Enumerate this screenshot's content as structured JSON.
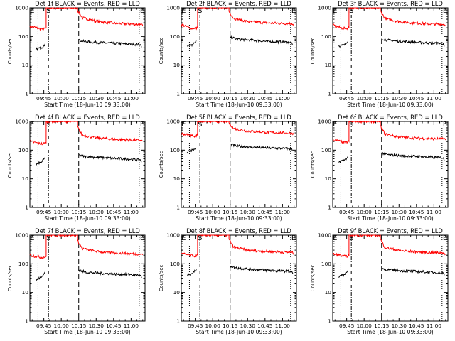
{
  "colors": {
    "events": "#000000",
    "lld": "#ff0000",
    "axes": "#000000",
    "background": "#ffffff"
  },
  "chart_data": [
    {
      "type": "line",
      "title": "Det 1f BLACK = Events, RED = LLD",
      "xlabel": "Start Time (18-Jun-10 09:33:00)",
      "ylabel": "Counts/sec",
      "x_ticks": [
        "09:45",
        "10:00",
        "10:15",
        "10:30",
        "10:45",
        "11:00"
      ],
      "y_ticks": [
        "1",
        "10",
        "100",
        "1000"
      ],
      "y_scale": "log",
      "ylim": [
        1,
        1000
      ],
      "xlim": [
        "09:33",
        "11:12"
      ],
      "markers": [
        "E",
        "S",
        "E"
      ],
      "series": [
        {
          "color": "#ff0000",
          "x": [
            "09:33",
            "09:40",
            "09:44",
            "09:47",
            "09:47",
            "10:14",
            "10:14",
            "10:18",
            "10:30",
            "10:45",
            "11:00",
            "11:08",
            "11:10"
          ],
          "y": [
            230,
            195,
            175,
            195,
            1000,
            1000,
            800,
            450,
            340,
            290,
            270,
            260,
            240
          ]
        },
        {
          "color": "#000000",
          "x": [
            "09:38",
            "09:40",
            "09:43",
            "09:45",
            "09:46",
            "10:15",
            "10:15",
            "10:20",
            "10:30",
            "10:45",
            "11:00",
            "11:08",
            "11:09"
          ],
          "y": [
            34,
            38,
            40,
            50,
            55,
            null,
            75,
            66,
            62,
            57,
            54,
            52,
            42
          ]
        }
      ]
    },
    {
      "type": "line",
      "title": "Det 2f BLACK = Events, RED = LLD",
      "xlabel": "Start Time (18-Jun-10 09:33:00)",
      "ylabel": "Counts/sec",
      "x_ticks": [
        "09:45",
        "10:00",
        "10:15",
        "10:30",
        "10:45",
        "11:00"
      ],
      "y_ticks": [
        "1",
        "10",
        "100",
        "1000"
      ],
      "y_scale": "log",
      "ylim": [
        1,
        1000
      ],
      "xlim": [
        "09:33",
        "11:12"
      ],
      "markers": [
        "E",
        "S",
        "E"
      ],
      "series": [
        {
          "color": "#ff0000",
          "x": [
            "09:33",
            "09:40",
            "09:44",
            "09:47",
            "09:47",
            "10:14",
            "10:14",
            "10:18",
            "10:30",
            "10:45",
            "11:00",
            "11:08",
            "11:10"
          ],
          "y": [
            260,
            200,
            185,
            210,
            1000,
            1000,
            750,
            430,
            330,
            300,
            285,
            280,
            255
          ]
        },
        {
          "color": "#000000",
          "x": [
            "09:38",
            "09:40",
            "09:43",
            "09:45",
            "09:46",
            "10:15",
            "10:15",
            "10:20",
            "10:30",
            "10:45",
            "11:00",
            "11:08",
            "11:09"
          ],
          "y": [
            45,
            48,
            52,
            60,
            68,
            null,
            95,
            82,
            75,
            68,
            64,
            60,
            50
          ]
        }
      ]
    },
    {
      "type": "line",
      "title": "Det 3f BLACK = Events, RED = LLD",
      "xlabel": "Start Time (18-Jun-10 09:33:00)",
      "ylabel": "Counts/sec",
      "x_ticks": [
        "09:45",
        "10:00",
        "10:15",
        "10:30",
        "10:45",
        "11:00"
      ],
      "y_ticks": [
        "1",
        "10",
        "100",
        "1000"
      ],
      "y_scale": "log",
      "ylim": [
        1,
        1000
      ],
      "xlim": [
        "09:33",
        "11:12"
      ],
      "markers": [
        "E",
        "S",
        "E"
      ],
      "series": [
        {
          "color": "#ff0000",
          "x": [
            "09:33",
            "09:40",
            "09:44",
            "09:47",
            "09:47",
            "10:14",
            "10:14",
            "10:18",
            "10:30",
            "10:45",
            "11:00",
            "11:08",
            "11:10"
          ],
          "y": [
            250,
            200,
            185,
            205,
            1000,
            1000,
            780,
            420,
            330,
            290,
            270,
            265,
            245
          ]
        },
        {
          "color": "#000000",
          "x": [
            "09:38",
            "09:40",
            "09:43",
            "09:45",
            "09:46",
            "10:15",
            "10:15",
            "10:20",
            "10:30",
            "10:45",
            "11:00",
            "11:08",
            "11:09"
          ],
          "y": [
            46,
            48,
            50,
            58,
            66,
            null,
            85,
            74,
            68,
            62,
            58,
            56,
            45
          ]
        }
      ]
    },
    {
      "type": "line",
      "title": "Det 4f BLACK = Events, RED = LLD",
      "xlabel": "Start Time (18-Jun-10 09:33:00)",
      "ylabel": "Counts/sec",
      "x_ticks": [
        "09:45",
        "10:00",
        "10:15",
        "10:30",
        "10:45",
        "11:00"
      ],
      "y_ticks": [
        "1",
        "10",
        "100",
        "1000"
      ],
      "y_scale": "log",
      "ylim": [
        1,
        1000
      ],
      "xlim": [
        "09:33",
        "11:12"
      ],
      "markers": [
        "E",
        "S",
        "E"
      ],
      "series": [
        {
          "color": "#ff0000",
          "x": [
            "09:33",
            "09:40",
            "09:44",
            "09:47",
            "09:47",
            "10:14",
            "10:14",
            "10:18",
            "10:30",
            "10:45",
            "11:00",
            "11:08",
            "11:10"
          ],
          "y": [
            200,
            175,
            165,
            180,
            1000,
            1000,
            650,
            330,
            270,
            240,
            225,
            220,
            205
          ]
        },
        {
          "color": "#000000",
          "x": [
            "09:38",
            "09:40",
            "09:43",
            "09:45",
            "09:46",
            "10:15",
            "10:15",
            "10:20",
            "10:30",
            "10:45",
            "11:00",
            "11:08",
            "11:09"
          ],
          "y": [
            30,
            34,
            38,
            48,
            55,
            null,
            68,
            60,
            56,
            52,
            48,
            46,
            38
          ]
        }
      ]
    },
    {
      "type": "line",
      "title": "Det 5f BLACK = Events, RED = LLD",
      "xlabel": "Start Time (18-Jun-10 09:33:00)",
      "ylabel": "Counts/sec",
      "x_ticks": [
        "09:45",
        "10:00",
        "10:15",
        "10:30",
        "10:45",
        "11:00"
      ],
      "y_ticks": [
        "1",
        "10",
        "100",
        "1000"
      ],
      "y_scale": "log",
      "ylim": [
        1,
        1000
      ],
      "xlim": [
        "09:33",
        "11:12"
      ],
      "markers": [
        "E",
        "S",
        "E"
      ],
      "series": [
        {
          "color": "#ff0000",
          "x": [
            "09:33",
            "09:40",
            "09:44",
            "09:47",
            "09:47",
            "10:14",
            "10:14",
            "10:18",
            "10:30",
            "10:45",
            "11:00",
            "11:08",
            "11:10"
          ],
          "y": [
            380,
            330,
            310,
            340,
            1000,
            1000,
            900,
            560,
            460,
            420,
            400,
            390,
            370
          ]
        },
        {
          "color": "#000000",
          "x": [
            "09:38",
            "09:40",
            "09:43",
            "09:45",
            "09:46",
            "10:15",
            "10:15",
            "10:20",
            "10:30",
            "10:45",
            "11:00",
            "11:08",
            "11:09"
          ],
          "y": [
            85,
            95,
            100,
            110,
            120,
            null,
            160,
            140,
            130,
            120,
            115,
            110,
            95
          ]
        }
      ]
    },
    {
      "type": "line",
      "title": "Det 6f BLACK = Events, RED = LLD",
      "xlabel": "Start Time (18-Jun-10 09:33:00)",
      "ylabel": "Counts/sec",
      "x_ticks": [
        "09:45",
        "10:00",
        "10:15",
        "10:30",
        "10:45",
        "11:00"
      ],
      "y_ticks": [
        "1",
        "10",
        "100",
        "1000"
      ],
      "y_scale": "log",
      "ylim": [
        1,
        1000
      ],
      "xlim": [
        "09:33",
        "11:12"
      ],
      "markers": [
        "E",
        "S",
        "E"
      ],
      "series": [
        {
          "color": "#ff0000",
          "x": [
            "09:33",
            "09:40",
            "09:44",
            "09:47",
            "09:47",
            "10:14",
            "10:14",
            "10:18",
            "10:30",
            "10:45",
            "11:00",
            "11:08",
            "11:10"
          ],
          "y": [
            230,
            200,
            185,
            200,
            1000,
            1000,
            700,
            360,
            290,
            260,
            250,
            245,
            225
          ]
        },
        {
          "color": "#000000",
          "x": [
            "09:38",
            "09:40",
            "09:43",
            "09:45",
            "09:46",
            "10:15",
            "10:15",
            "10:20",
            "10:30",
            "10:45",
            "11:00",
            "11:08",
            "11:09"
          ],
          "y": [
            38,
            42,
            45,
            52,
            60,
            null,
            80,
            70,
            64,
            60,
            56,
            54,
            44
          ]
        }
      ]
    },
    {
      "type": "line",
      "title": "Det 7f BLACK = Events, RED = LLD",
      "xlabel": "Start Time (18-Jun-10 09:33:00)",
      "ylabel": "Counts/sec",
      "x_ticks": [
        "09:45",
        "10:00",
        "10:15",
        "10:30",
        "10:45",
        "11:00"
      ],
      "y_ticks": [
        "1",
        "10",
        "100",
        "1000"
      ],
      "y_scale": "log",
      "ylim": [
        1,
        1000
      ],
      "xlim": [
        "09:33",
        "11:12"
      ],
      "markers": [
        "E",
        "S",
        "E"
      ],
      "series": [
        {
          "color": "#ff0000",
          "x": [
            "09:33",
            "09:40",
            "09:44",
            "09:47",
            "09:47",
            "10:14",
            "10:14",
            "10:18",
            "10:30",
            "10:45",
            "11:00",
            "11:08",
            "11:10"
          ],
          "y": [
            200,
            175,
            165,
            180,
            1000,
            1000,
            650,
            340,
            270,
            240,
            225,
            220,
            205
          ]
        },
        {
          "color": "#000000",
          "x": [
            "09:38",
            "09:40",
            "09:43",
            "09:45",
            "09:46",
            "10:15",
            "10:15",
            "10:20",
            "10:30",
            "10:45",
            "11:00",
            "11:08",
            "11:09"
          ],
          "y": [
            26,
            30,
            34,
            44,
            52,
            null,
            62,
            52,
            48,
            44,
            42,
            40,
            32
          ]
        }
      ]
    },
    {
      "type": "line",
      "title": "Det 8f BLACK = Events, RED = LLD",
      "xlabel": "Start Time (18-Jun-10 09:33:00)",
      "ylabel": "Counts/sec",
      "x_ticks": [
        "09:45",
        "10:00",
        "10:15",
        "10:30",
        "10:45",
        "11:00"
      ],
      "y_ticks": [
        "1",
        "10",
        "100",
        "1000"
      ],
      "y_scale": "log",
      "ylim": [
        1,
        1000
      ],
      "xlim": [
        "09:33",
        "11:12"
      ],
      "markers": [
        "E",
        "S",
        "E"
      ],
      "series": [
        {
          "color": "#ff0000",
          "x": [
            "09:33",
            "09:40",
            "09:44",
            "09:47",
            "09:47",
            "10:14",
            "10:14",
            "10:18",
            "10:30",
            "10:45",
            "11:00",
            "11:08",
            "11:10"
          ],
          "y": [
            230,
            200,
            185,
            200,
            1000,
            1000,
            720,
            380,
            300,
            270,
            255,
            250,
            230
          ]
        },
        {
          "color": "#000000",
          "x": [
            "09:38",
            "09:40",
            "09:43",
            "09:45",
            "09:46",
            "10:15",
            "10:15",
            "10:20",
            "10:30",
            "10:45",
            "11:00",
            "11:08",
            "11:09"
          ],
          "y": [
            40,
            44,
            48,
            56,
            64,
            null,
            85,
            72,
            66,
            60,
            56,
            54,
            44
          ]
        }
      ]
    },
    {
      "type": "line",
      "title": "Det 9f BLACK = Events, RED = LLD",
      "xlabel": "Start Time (18-Jun-10 09:33:00)",
      "ylabel": "Counts/sec",
      "x_ticks": [
        "09:45",
        "10:00",
        "10:15",
        "10:30",
        "10:45",
        "11:00"
      ],
      "y_ticks": [
        "1",
        "10",
        "100",
        "1000"
      ],
      "y_scale": "log",
      "ylim": [
        1,
        1000
      ],
      "xlim": [
        "09:33",
        "11:12"
      ],
      "markers": [
        "E",
        "S",
        "E"
      ],
      "series": [
        {
          "color": "#ff0000",
          "x": [
            "09:33",
            "09:40",
            "09:44",
            "09:47",
            "09:47",
            "10:14",
            "10:14",
            "10:18",
            "10:30",
            "10:45",
            "11:00",
            "11:08",
            "11:10"
          ],
          "y": [
            220,
            195,
            180,
            195,
            1000,
            1000,
            720,
            370,
            290,
            260,
            245,
            240,
            220
          ]
        },
        {
          "color": "#000000",
          "x": [
            "09:38",
            "09:40",
            "09:43",
            "09:45",
            "09:46",
            "10:15",
            "10:15",
            "10:20",
            "10:30",
            "10:45",
            "11:00",
            "11:08",
            "11:09"
          ],
          "y": [
            34,
            38,
            42,
            50,
            58,
            null,
            70,
            62,
            58,
            54,
            50,
            48,
            40
          ]
        }
      ]
    }
  ]
}
